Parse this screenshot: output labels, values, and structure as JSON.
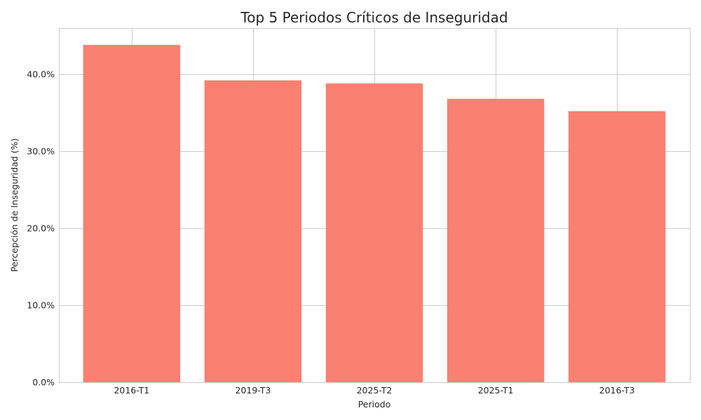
{
  "chart_data": {
    "type": "bar",
    "title": "Top 5 Periodos Críticos de Inseguridad",
    "xlabel": "Periodo",
    "ylabel": "Percepción de Inseguridad (%)",
    "categories": [
      "2016-T1",
      "2019-T3",
      "2025-T2",
      "2025-T1",
      "2016-T3"
    ],
    "values": [
      43.8,
      39.2,
      38.8,
      36.8,
      35.2
    ],
    "ylim": [
      0,
      46
    ],
    "yticks": [
      0,
      10,
      20,
      30,
      40
    ],
    "ytick_labels": [
      "0.0%",
      "10.0%",
      "20.0%",
      "30.0%",
      "40.0%"
    ],
    "bar_color": "#fa8072",
    "grid": true
  }
}
